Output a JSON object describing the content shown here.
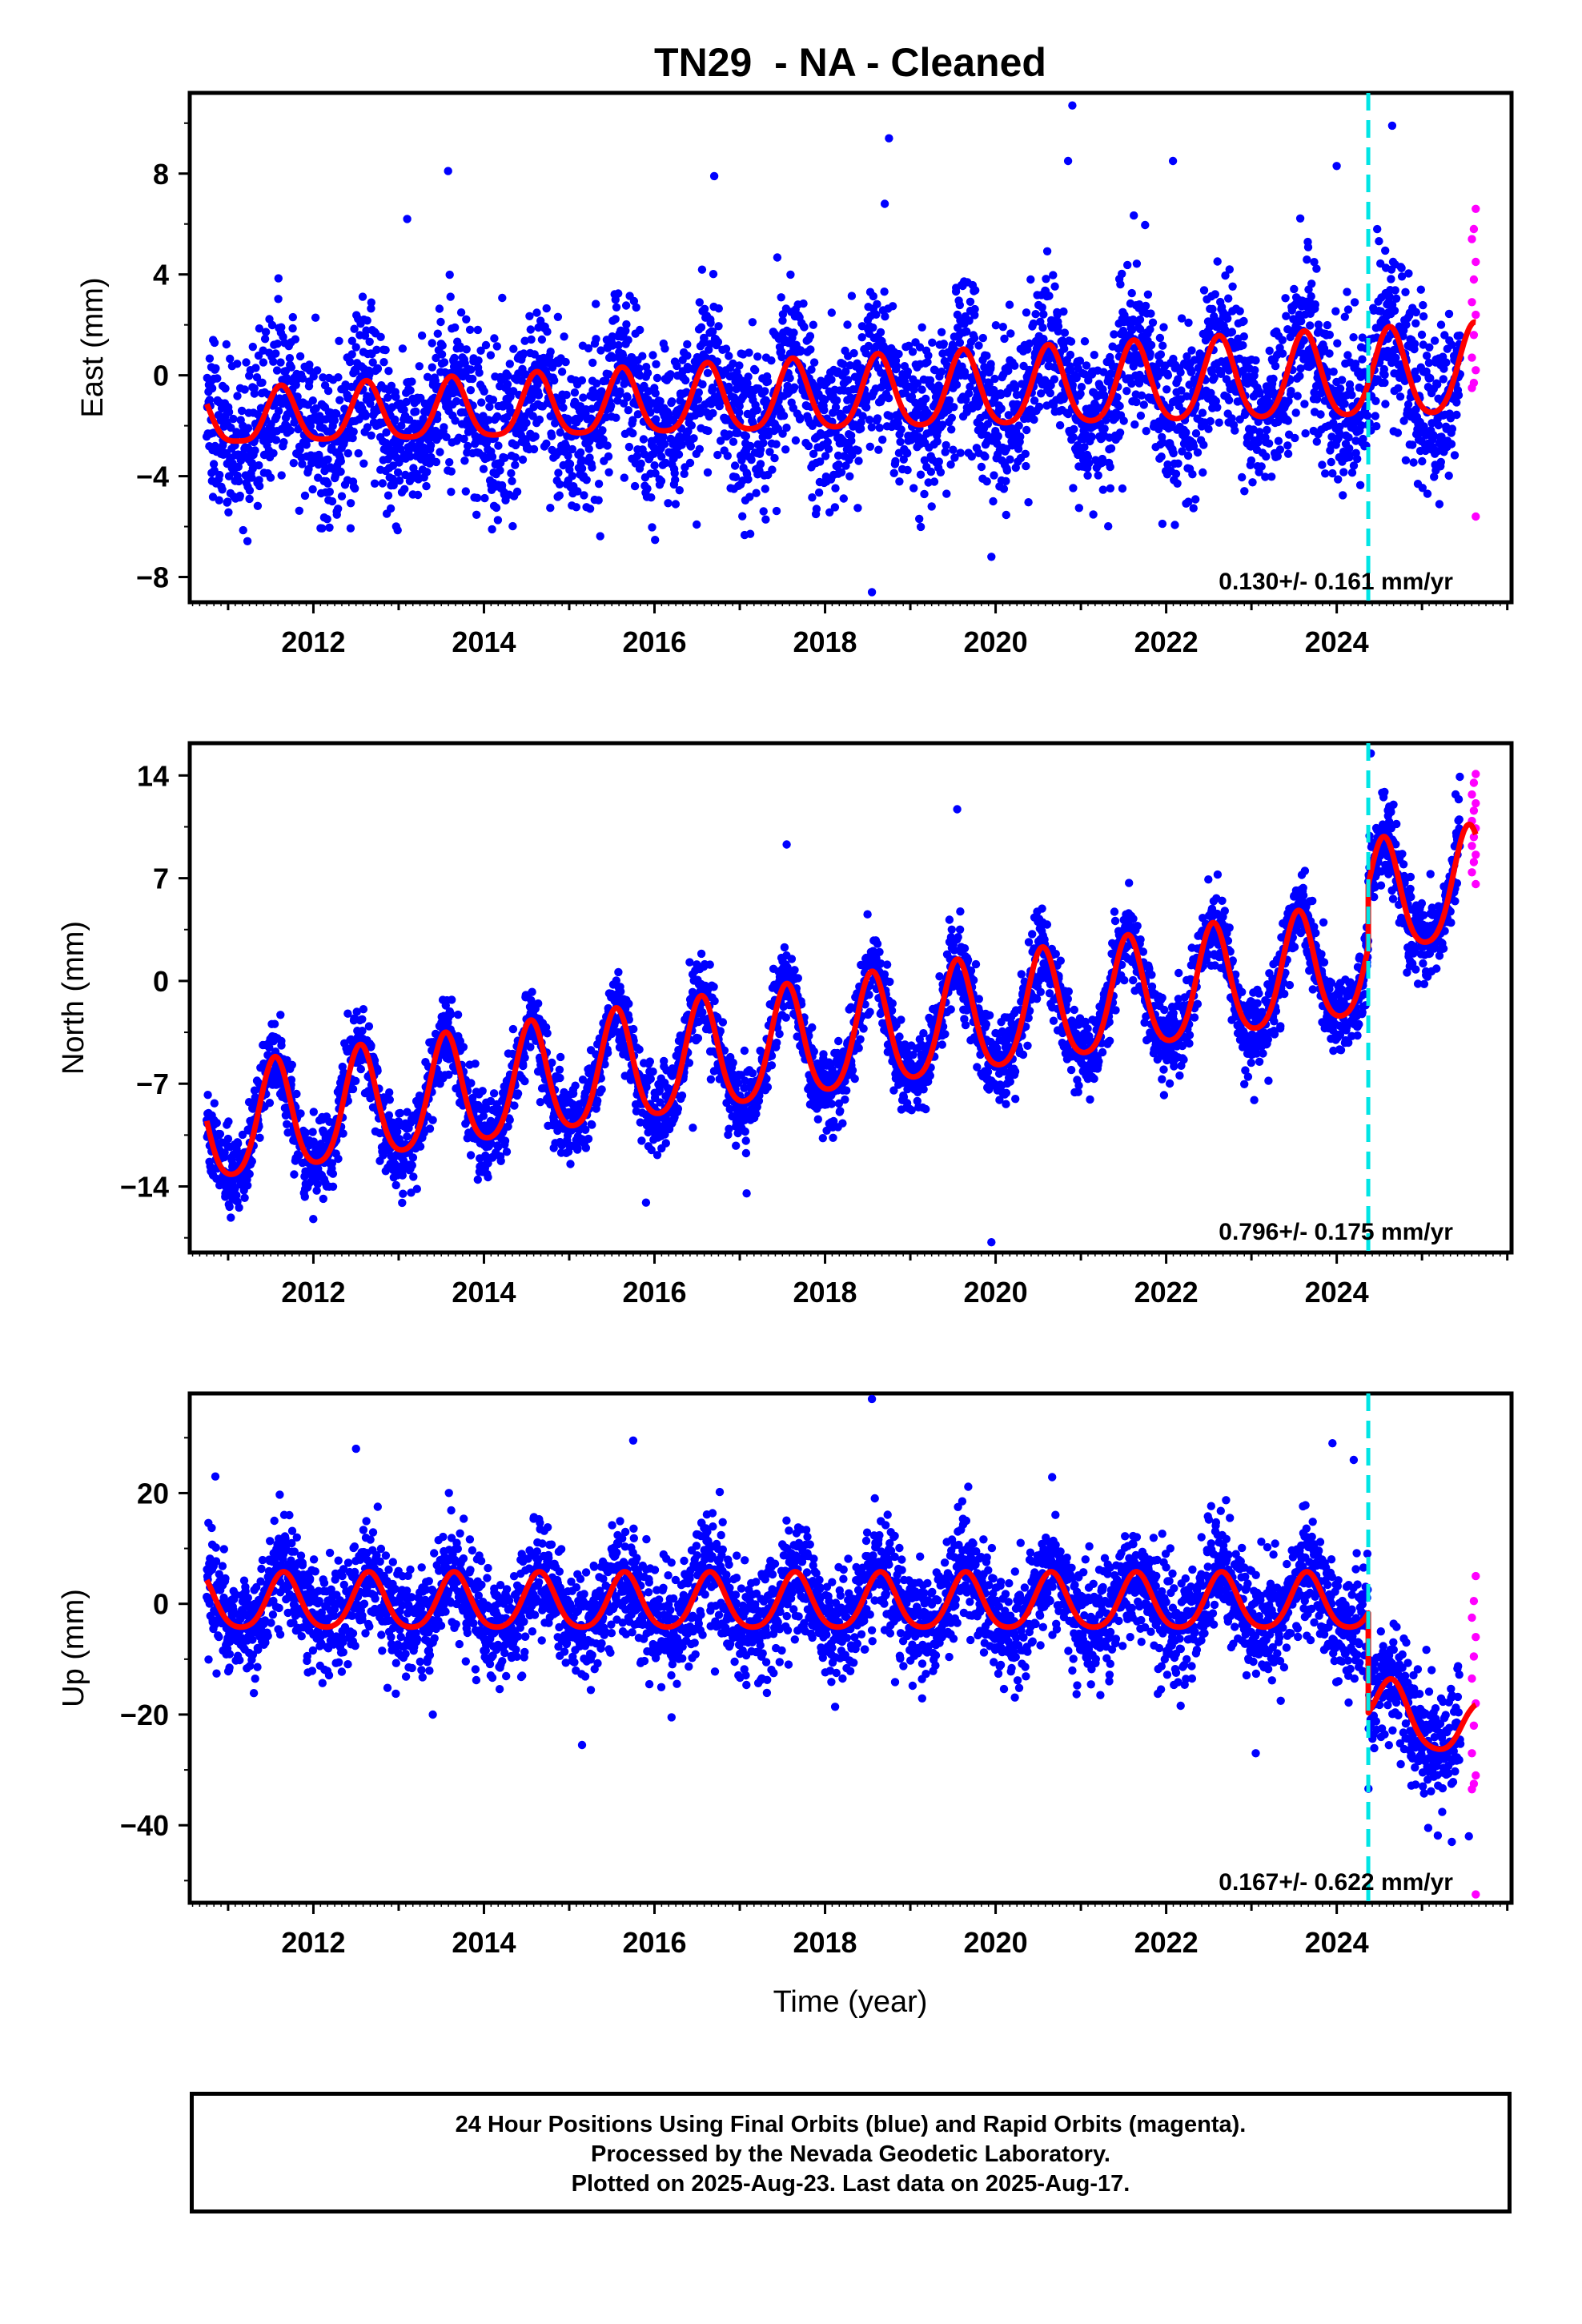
{
  "chart_data": {
    "type": "scatter",
    "title": "TN29  - NA - Cleaned",
    "xlabel": "Time (year)",
    "xlim": [
      2010.55,
      2026.05
    ],
    "x_ticks": [
      2012,
      2014,
      2016,
      2018,
      2020,
      2022,
      2024
    ],
    "x_tick_labels": [
      "2012",
      "2014",
      "2016",
      "2018",
      "2020",
      "2022",
      "2024"
    ],
    "data_span": [
      2010.75,
      2025.63
    ],
    "rapid_orbit_span": [
      2025.45,
      2025.63
    ],
    "equipment_change_year": 2024.37,
    "colors": {
      "final_orbits": "#0000ff",
      "rapid_orbits": "#ff00ff",
      "model_fit": "#ff0000",
      "offset_marker": "#00e5e5"
    },
    "grid": false,
    "panels": [
      {
        "component": "East",
        "ylabel": "East (mm)",
        "ylim": [
          -9,
          11.2
        ],
        "y_ticks": [
          -8,
          -4,
          0,
          4,
          8
        ],
        "y_tick_labels": [
          "−8",
          "−4",
          "0",
          "4",
          "8"
        ],
        "rate_text": "0.130+/- 0.161 mm/yr",
        "scatter_sd": 1.6,
        "model": {
          "intercept": -0.9,
          "slope": 0.13,
          "annual_amp": 1.4,
          "annual_peak": 0.62,
          "semiannual_amp": 0.25,
          "offset": 0.0,
          "amp_growth": 0.035
        },
        "outliers": [
          {
            "x": 2013.58,
            "y": 8.1
          },
          {
            "x": 2018.75,
            "y": 9.4
          },
          {
            "x": 2020.9,
            "y": 10.7
          },
          {
            "x": 2022.08,
            "y": 8.5
          },
          {
            "x": 2024.65,
            "y": 9.9
          },
          {
            "x": 2020.85,
            "y": 8.5
          },
          {
            "x": 2018.55,
            "y": -8.6
          },
          {
            "x": 2019.95,
            "y": -7.2
          },
          {
            "x": 2011.25,
            "y": -4.9
          },
          {
            "x": 2018.7,
            "y": 6.8
          },
          {
            "x": 2016.7,
            "y": 7.9
          },
          {
            "x": 2013.1,
            "y": 6.2
          },
          {
            "x": 2024.0,
            "y": 8.3
          },
          {
            "x": 2017.9,
            "y": -5.3
          },
          {
            "x": 2019.25,
            "y": -5.2
          },
          {
            "x": 2015.05,
            "y": -4.4
          }
        ],
        "rapid_points": [
          6.6,
          5.8,
          5.4,
          4.5,
          3.8,
          2.9,
          2.4,
          1.6,
          0.7,
          0.2,
          -0.3,
          -0.5,
          -5.6
        ]
      },
      {
        "component": "North",
        "ylabel": "North (mm)",
        "ylim": [
          -18.5,
          16.2
        ],
        "y_ticks": [
          -14,
          -7,
          0,
          7,
          14
        ],
        "y_tick_labels": [
          "−14",
          "−7",
          "0",
          "7",
          "14"
        ],
        "rate_text": "0.796+/- 0.175 mm/yr",
        "scatter_sd": 1.4,
        "model": {
          "intercept": -4.2,
          "slope": 0.83,
          "annual_amp": 3.8,
          "annual_peak": 0.55,
          "semiannual_amp": 0.6,
          "offset": 4.2,
          "amp_growth": 0.0
        },
        "outliers": [
          {
            "x": 2015.9,
            "y": -15.1
          },
          {
            "x": 2019.95,
            "y": -17.8
          },
          {
            "x": 2024.4,
            "y": 15.5
          },
          {
            "x": 2019.55,
            "y": 11.7
          },
          {
            "x": 2011.05,
            "y": -14.8
          },
          {
            "x": 2011.9,
            "y": -14.7
          },
          {
            "x": 2013.05,
            "y": -14.5
          },
          {
            "x": 2023.2,
            "y": -6.8
          },
          {
            "x": 2021.95,
            "y": -6.7
          },
          {
            "x": 2015.0,
            "y": -11.2
          },
          {
            "x": 2017.55,
            "y": 9.3
          },
          {
            "x": 2016.45,
            "y": -10.0
          }
        ],
        "rapid_points": [
          14.1,
          13.5,
          12.7,
          12.1,
          11.6,
          10.9,
          10.4,
          9.8,
          9.2,
          8.6,
          8.1,
          7.4,
          6.6
        ]
      },
      {
        "component": "Up",
        "ylabel": "Up (mm)",
        "ylim": [
          -54,
          38
        ],
        "y_ticks": [
          -40,
          -20,
          0,
          20
        ],
        "y_tick_labels": [
          "−40",
          "−20",
          "0",
          "20"
        ],
        "rate_text": "0.167+/- 0.622 mm/yr",
        "scatter_sd": 5.0,
        "model": {
          "intercept": 0.0,
          "slope": 0.0,
          "annual_amp": 5.0,
          "annual_peak": 0.65,
          "semiannual_amp": 0.8,
          "offset": -18.0,
          "amp_growth": 0.0,
          "post_trend": -6.0
        },
        "outliers": [
          {
            "x": 2018.55,
            "y": 37.0
          },
          {
            "x": 2023.95,
            "y": 29.0
          },
          {
            "x": 2012.5,
            "y": 28.0
          },
          {
            "x": 2015.75,
            "y": 29.5
          },
          {
            "x": 2015.15,
            "y": -25.5
          },
          {
            "x": 2013.4,
            "y": -20.0
          },
          {
            "x": 2016.2,
            "y": -20.5
          },
          {
            "x": 2010.85,
            "y": 23.0
          },
          {
            "x": 2025.35,
            "y": -43.0
          },
          {
            "x": 2025.55,
            "y": -42.0
          },
          {
            "x": 2023.05,
            "y": -27.0
          },
          {
            "x": 2024.2,
            "y": 26.0
          }
        ],
        "rapid_points": [
          5.0,
          0.5,
          -2.5,
          -6.0,
          -9.5,
          -13.5,
          -18.0,
          -22.0,
          -27.0,
          -31.0,
          -32.5,
          -33.5,
          -52.5
        ]
      }
    ]
  },
  "caption": {
    "line1": "24 Hour Positions Using Final Orbits (blue) and Rapid Orbits (magenta).",
    "line2": "Processed by the Nevada Geodetic Laboratory.",
    "line3": "Plotted on 2025-Aug-23. Last data on 2025-Aug-17."
  }
}
